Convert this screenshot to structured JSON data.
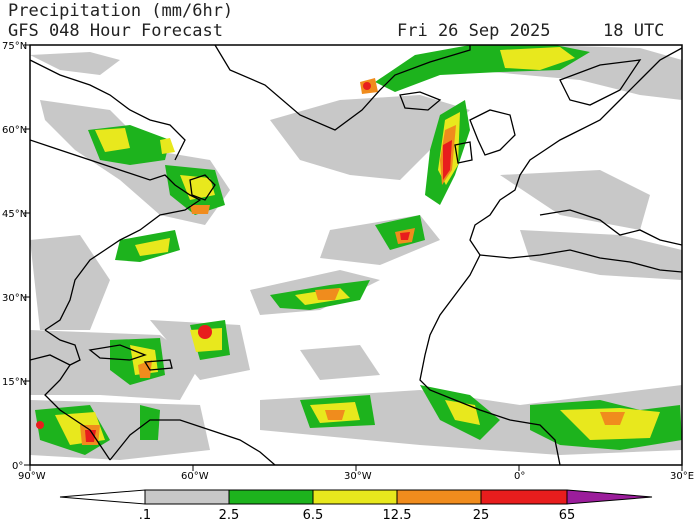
{
  "header": {
    "title": "Precipitation (mm/6hr)",
    "subtitle": "GFS 048 Hour Forecast",
    "valid_date": "Fri 26 Sep 2025",
    "valid_time": "18 UTC"
  },
  "map": {
    "region": "North Atlantic",
    "projection": "cylindrical equidistant",
    "lat_labels": [
      "75°N",
      "60°N",
      "45°N",
      "30°N",
      "15°N",
      "0°"
    ],
    "lon_labels": [
      "90°W",
      "60°W",
      "30°W",
      "0°",
      "30°E"
    ],
    "lon_range": [
      -90,
      30
    ],
    "lat_range": [
      0,
      75
    ]
  },
  "colorbar": {
    "levels": [
      ".1",
      "2.5",
      "6.5",
      "12.5",
      "25",
      "65"
    ],
    "colors": {
      "trace": "#ffffff",
      "light": "#c8c8c8",
      "moderate": "#1db31d",
      "heavy": "#e8e81d",
      "very_heavy": "#f08c1d",
      "intense": "#e81d1d",
      "extreme": "#9b1d9b"
    }
  }
}
